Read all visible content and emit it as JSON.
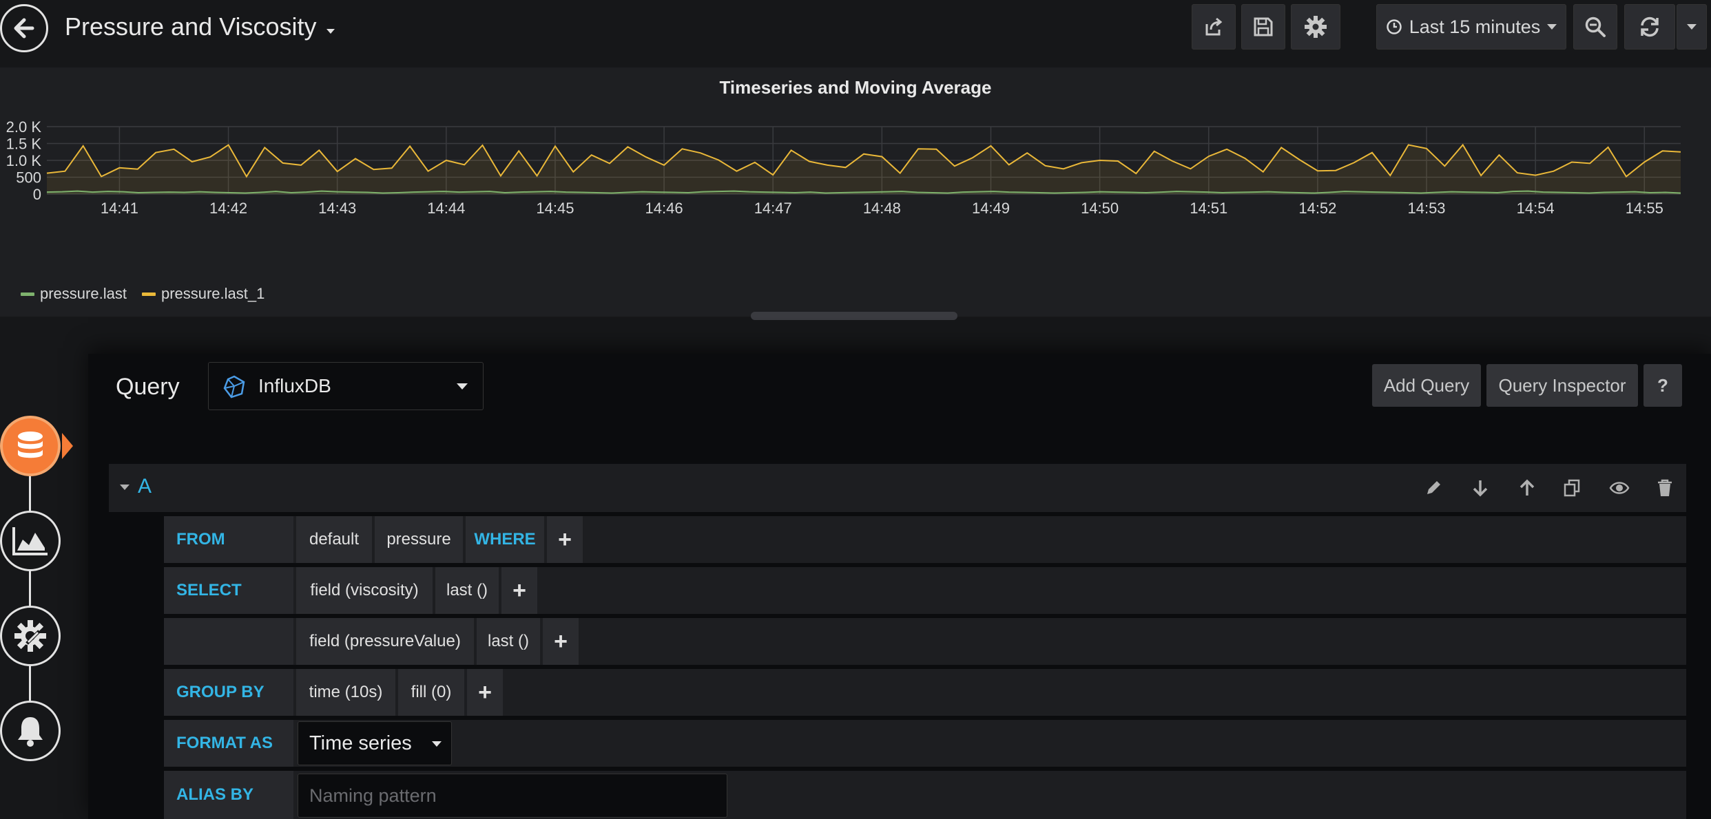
{
  "header": {
    "title": "Pressure and Viscosity",
    "time_range_label": "Last 15 minutes"
  },
  "panel": {
    "title": "Timeseries and Moving Average"
  },
  "chart_data": {
    "type": "line",
    "title": "Timeseries and Moving Average",
    "xlabel": "",
    "ylabel": "",
    "y_ticks": [
      "0",
      "500",
      "1.0 K",
      "1.5 K",
      "2.0 K"
    ],
    "ylim": [
      0,
      2000
    ],
    "x_ticks": [
      "14:41",
      "14:42",
      "14:43",
      "14:44",
      "14:45",
      "14:46",
      "14:47",
      "14:48",
      "14:49",
      "14:50",
      "14:51",
      "14:52",
      "14:53",
      "14:54",
      "14:55"
    ],
    "xlim": [
      "14:40:20",
      "14:55:20"
    ],
    "grid": true,
    "legend_position": "bottom-left",
    "colors": {
      "pressure.last": "#7eb26d",
      "pressure.last_1": "#eab839"
    },
    "series": [
      {
        "name": "pressure.last",
        "values": [
          60,
          70,
          90,
          60,
          80,
          70,
          40,
          50,
          60,
          50,
          70,
          50,
          40,
          30,
          50,
          80,
          40,
          60,
          90,
          70,
          60,
          50,
          30,
          40,
          60,
          70,
          80,
          60,
          70,
          80,
          40,
          60,
          70,
          80,
          60,
          50,
          40,
          30,
          50,
          70,
          60,
          50,
          40,
          70,
          80,
          90,
          70,
          60,
          50,
          40,
          60,
          30,
          40,
          50,
          60,
          70,
          80,
          50,
          40,
          30,
          60,
          70,
          80,
          60,
          50,
          40,
          30,
          40,
          50,
          70,
          60,
          50,
          40,
          60,
          80,
          70,
          60,
          40,
          50,
          60,
          70,
          50,
          40,
          30,
          50,
          80,
          70,
          60,
          50,
          40,
          30,
          50,
          70,
          60,
          50,
          40,
          80,
          90,
          60,
          50,
          40,
          30,
          50,
          60,
          70,
          40,
          50,
          30
        ],
        "x_step_seconds": 10
      },
      {
        "name": "pressure.last_1",
        "values": [
          620,
          680,
          1430,
          520,
          780,
          740,
          1230,
          1330,
          960,
          1100,
          1460,
          520,
          1380,
          920,
          860,
          1300,
          670,
          1050,
          730,
          770,
          1420,
          680,
          1000,
          870,
          1450,
          540,
          1280,
          540,
          1420,
          660,
          1160,
          910,
          1400,
          1100,
          860,
          1340,
          1220,
          1010,
          680,
          940,
          570,
          1300,
          970,
          860,
          790,
          1190,
          1110,
          620,
          1340,
          1330,
          830,
          1080,
          1430,
          870,
          1220,
          840,
          750,
          930,
          1000,
          980,
          610,
          1270,
          980,
          750,
          1120,
          1330,
          1060,
          660,
          1380,
          1020,
          690,
          700,
          930,
          1230,
          550,
          1460,
          1350,
          830,
          1460,
          550,
          1160,
          630,
          560,
          680,
          950,
          910,
          1390,
          520,
          950,
          1280,
          1250
        ],
        "x_step_seconds": 10
      }
    ]
  },
  "query_editor": {
    "query_label": "Query",
    "datasource": "InfluxDB",
    "add_query_label": "Add Query",
    "inspector_label": "Query Inspector",
    "help_label": "?",
    "query_ref": "A",
    "rows": {
      "from": {
        "keyword": "FROM",
        "policy": "default",
        "measurement": "pressure",
        "where": "WHERE",
        "plus": "+"
      },
      "select1": {
        "keyword": "SELECT",
        "field": "field (viscosity)",
        "agg": "last ()",
        "plus": "+"
      },
      "select2": {
        "field": "field (pressureValue)",
        "agg": "last ()",
        "plus": "+"
      },
      "group_by": {
        "keyword": "GROUP BY",
        "time": "time (10s)",
        "fill": "fill (0)",
        "plus": "+"
      },
      "format_as": {
        "keyword": "FORMAT AS",
        "value": "Time series"
      },
      "alias_by": {
        "keyword": "ALIAS BY",
        "placeholder": "Naming pattern"
      }
    }
  },
  "icons": {
    "back": "arrow-left-icon",
    "share": "share-icon",
    "save": "save-icon",
    "settings": "gear-icon",
    "clock": "clock-icon",
    "zoom_out": "zoom-out-icon",
    "refresh": "refresh-icon",
    "rail": [
      "database-icon",
      "chart-area-icon",
      "gear-wrench-icon",
      "bell-icon"
    ]
  }
}
